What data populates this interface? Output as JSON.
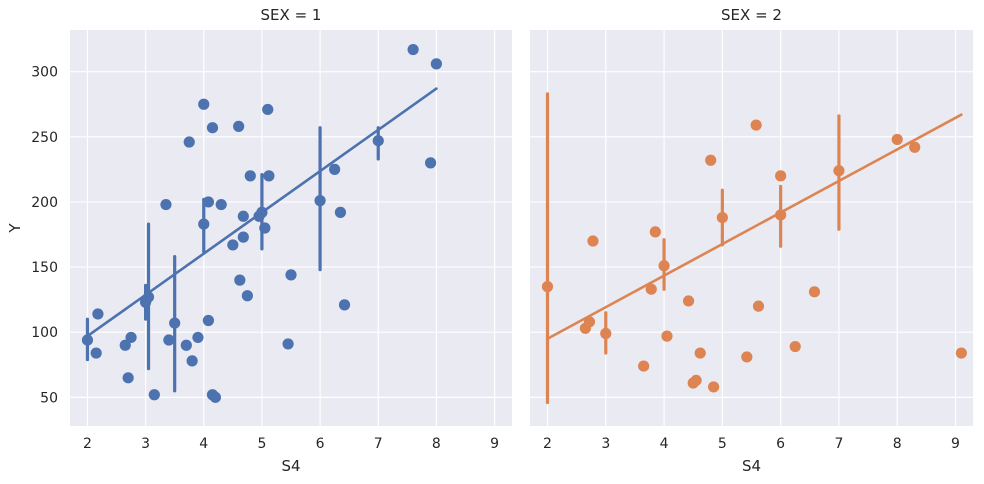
{
  "chart_data": [
    {
      "type": "scatter",
      "title": "SEX = 1",
      "xlabel": "S4",
      "ylabel": "Y",
      "xlim": [
        1.7,
        9.3
      ],
      "ylim": [
        28,
        332
      ],
      "xticks": [
        "2",
        "3",
        "4",
        "5",
        "6",
        "7",
        "8",
        "9"
      ],
      "yticks": [
        "50",
        "100",
        "150",
        "200",
        "250",
        "300"
      ],
      "grid": true,
      "color": "#4c72b0",
      "points": [
        [
          2.0,
          94
        ],
        [
          2.15,
          84
        ],
        [
          2.18,
          114
        ],
        [
          2.65,
          90
        ],
        [
          2.75,
          96
        ],
        [
          2.7,
          65
        ],
        [
          3.0,
          123
        ],
        [
          3.05,
          127
        ],
        [
          3.15,
          52
        ],
        [
          3.35,
          198
        ],
        [
          3.4,
          94
        ],
        [
          3.5,
          107
        ],
        [
          3.7,
          90
        ],
        [
          3.75,
          246
        ],
        [
          3.8,
          78
        ],
        [
          3.9,
          96
        ],
        [
          4.0,
          183
        ],
        [
          4.0,
          275
        ],
        [
          4.08,
          200
        ],
        [
          4.08,
          109
        ],
        [
          4.15,
          257
        ],
        [
          4.15,
          52
        ],
        [
          4.2,
          50
        ],
        [
          4.3,
          198
        ],
        [
          4.5,
          167
        ],
        [
          4.6,
          258
        ],
        [
          4.62,
          140
        ],
        [
          4.68,
          189
        ],
        [
          4.68,
          173
        ],
        [
          4.75,
          128
        ],
        [
          4.8,
          220
        ],
        [
          4.95,
          189
        ],
        [
          5.0,
          192
        ],
        [
          5.05,
          180
        ],
        [
          5.1,
          271
        ],
        [
          5.12,
          220
        ],
        [
          5.45,
          91
        ],
        [
          5.5,
          144
        ],
        [
          6.0,
          201
        ],
        [
          6.25,
          225
        ],
        [
          6.35,
          192
        ],
        [
          6.42,
          121
        ],
        [
          7.0,
          247
        ],
        [
          7.6,
          317
        ],
        [
          7.9,
          230
        ],
        [
          8.0,
          306
        ]
      ],
      "error_bars": [
        {
          "x": 2.0,
          "low": 79,
          "high": 110
        },
        {
          "x": 3.0,
          "low": 110,
          "high": 136
        },
        {
          "x": 3.05,
          "low": 72,
          "high": 183
        },
        {
          "x": 3.5,
          "low": 55,
          "high": 158
        },
        {
          "x": 4.0,
          "low": 162,
          "high": 202
        },
        {
          "x": 5.0,
          "low": 164,
          "high": 221
        },
        {
          "x": 6.0,
          "low": 148,
          "high": 257
        },
        {
          "x": 7.0,
          "low": 233,
          "high": 257
        }
      ],
      "regression": {
        "x": [
          2.0,
          8.0
        ],
        "y": [
          97,
          287
        ]
      }
    },
    {
      "type": "scatter",
      "title": "SEX = 2",
      "xlabel": "S4",
      "ylabel": "",
      "xlim": [
        1.7,
        9.3
      ],
      "ylim": [
        28,
        332
      ],
      "xticks": [
        "2",
        "3",
        "4",
        "5",
        "6",
        "7",
        "8",
        "9"
      ],
      "yticks": [
        "50",
        "100",
        "150",
        "200",
        "250",
        "300"
      ],
      "grid": true,
      "color": "#dd8452",
      "points": [
        [
          2.0,
          135
        ],
        [
          2.65,
          103
        ],
        [
          2.72,
          108
        ],
        [
          2.78,
          170
        ],
        [
          3.0,
          99
        ],
        [
          3.65,
          74
        ],
        [
          3.78,
          133
        ],
        [
          3.85,
          177
        ],
        [
          4.0,
          151
        ],
        [
          4.05,
          97
        ],
        [
          4.42,
          124
        ],
        [
          4.5,
          61
        ],
        [
          4.55,
          63
        ],
        [
          4.62,
          84
        ],
        [
          4.8,
          232
        ],
        [
          4.85,
          58
        ],
        [
          5.0,
          188
        ],
        [
          5.42,
          81
        ],
        [
          5.58,
          259
        ],
        [
          5.62,
          120
        ],
        [
          6.0,
          220
        ],
        [
          6.0,
          190
        ],
        [
          6.25,
          89
        ],
        [
          6.58,
          131
        ],
        [
          7.0,
          224
        ],
        [
          8.0,
          248
        ],
        [
          8.3,
          242
        ],
        [
          9.1,
          84
        ]
      ],
      "error_bars": [
        {
          "x": 2.0,
          "low": 46,
          "high": 283
        },
        {
          "x": 3.0,
          "low": 84,
          "high": 115
        },
        {
          "x": 4.0,
          "low": 133,
          "high": 171
        },
        {
          "x": 5.0,
          "low": 167,
          "high": 209
        },
        {
          "x": 6.0,
          "low": 166,
          "high": 212
        },
        {
          "x": 7.0,
          "low": 179,
          "high": 266
        }
      ],
      "regression": {
        "x": [
          2.0,
          9.1
        ],
        "y": [
          95,
          267
        ]
      }
    }
  ]
}
